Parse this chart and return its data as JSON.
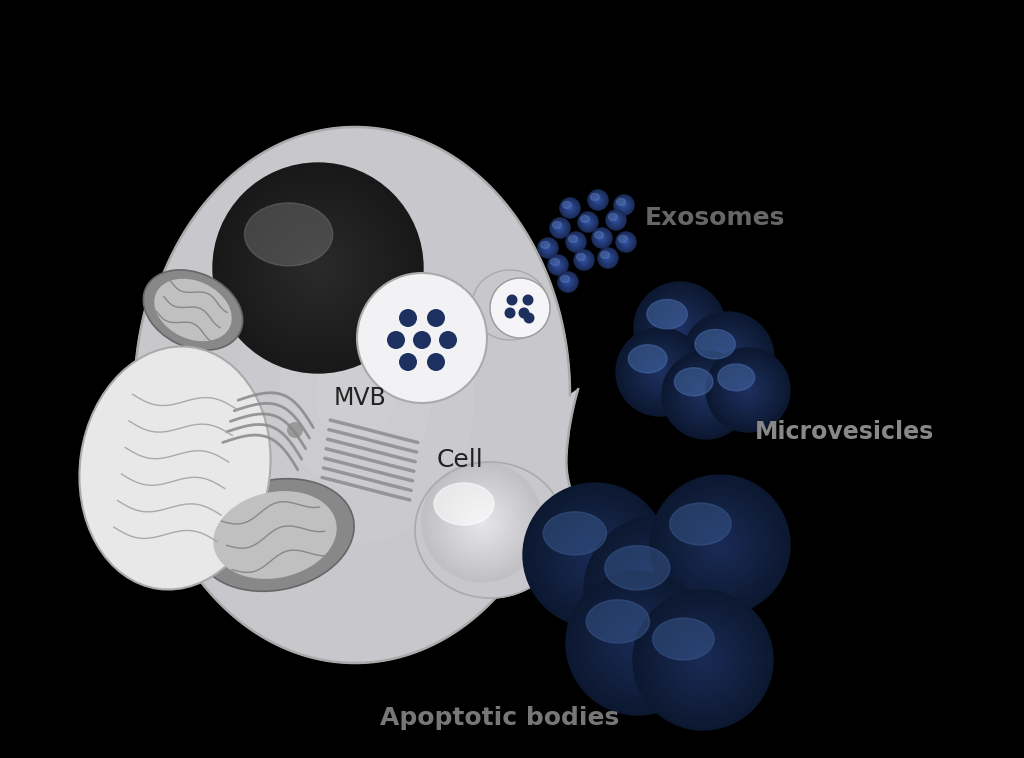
{
  "background_color": "#000000",
  "label_mvb": "MVB",
  "label_cell": "Cell",
  "label_exosomes": "Exosomes",
  "label_microvesicles": "Microvesicles",
  "label_apoptotic": "Apoptotic bodies",
  "cell_fill": "#c8c8cc",
  "cell_edge": "#aaaaaa",
  "nucleus_dark": "#1c1c1c",
  "nucleus_mid": "#3a3a3a",
  "nucleus_highlight": "#888888",
  "mvb_fill": "#f0f0f2",
  "mvb_edge": "#999999",
  "mvb_dot_color": "#1e2f5e",
  "vesicle_dark": "#0f1a35",
  "vesicle_mid": "#1e2f5a",
  "vesicle_highlight": "#3a5a90",
  "mito_fill": "#888888",
  "mito_inner": "#aaaaaa",
  "mito_line": "#777777",
  "er_fill": "#e0e0e0",
  "er_line": "#aaaaaa",
  "golgi_line": "#888888",
  "exo_color": "#2a3f6f",
  "text_dark": "#222222",
  "text_gray": "#777777",
  "text_bold_gray": "#666666"
}
